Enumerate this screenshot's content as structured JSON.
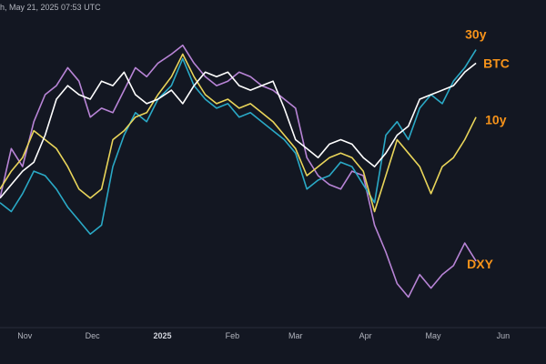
{
  "header": {
    "timestamp": "h, May 21, 2025 07:53 UTC"
  },
  "chart_data": {
    "type": "line",
    "colors": {
      "background": "#131722",
      "label": "#f7931a",
      "axis_text": "#b2b5be"
    },
    "x_ticks": [
      "Nov",
      "Dec",
      "2025",
      "Feb",
      "Mar",
      "Apr",
      "May",
      "Jun"
    ],
    "x_range": [
      "2024-10-21",
      "2025-06-20"
    ],
    "y_axis": "none",
    "grid": false,
    "series": [
      {
        "name": "DXY",
        "color": "#b884d6",
        "points": [
          [
            "2024-10-21",
            30
          ],
          [
            "2024-10-26",
            52
          ],
          [
            "2024-10-31",
            44
          ],
          [
            "2024-11-05",
            64
          ],
          [
            "2024-11-10",
            76
          ],
          [
            "2024-11-15",
            80
          ],
          [
            "2024-11-20",
            88
          ],
          [
            "2024-11-25",
            82
          ],
          [
            "2024-11-30",
            66
          ],
          [
            "2024-12-05",
            70
          ],
          [
            "2024-12-10",
            68
          ],
          [
            "2024-12-15",
            78
          ],
          [
            "2024-12-20",
            88
          ],
          [
            "2024-12-25",
            84
          ],
          [
            "2024-12-30",
            90
          ],
          [
            "2025-01-05",
            94
          ],
          [
            "2025-01-10",
            98
          ],
          [
            "2025-01-15",
            90
          ],
          [
            "2025-01-20",
            84
          ],
          [
            "2025-01-25",
            80
          ],
          [
            "2025-01-30",
            82
          ],
          [
            "2025-02-04",
            86
          ],
          [
            "2025-02-09",
            84
          ],
          [
            "2025-02-14",
            80
          ],
          [
            "2025-02-19",
            78
          ],
          [
            "2025-02-24",
            74
          ],
          [
            "2025-03-01",
            70
          ],
          [
            "2025-03-06",
            48
          ],
          [
            "2025-03-11",
            40
          ],
          [
            "2025-03-16",
            36
          ],
          [
            "2025-03-21",
            34
          ],
          [
            "2025-03-26",
            42
          ],
          [
            "2025-03-31",
            40
          ],
          [
            "2025-04-05",
            18
          ],
          [
            "2025-04-10",
            6
          ],
          [
            "2025-04-15",
            -8
          ],
          [
            "2025-04-20",
            -14
          ],
          [
            "2025-04-25",
            -4
          ],
          [
            "2025-04-30",
            -10
          ],
          [
            "2025-05-05",
            -4
          ],
          [
            "2025-05-10",
            0
          ],
          [
            "2025-05-15",
            10
          ],
          [
            "2025-05-20",
            2
          ]
        ]
      },
      {
        "name": "30y",
        "color": "#2aa9c6",
        "points": [
          [
            "2024-10-21",
            28
          ],
          [
            "2024-10-26",
            24
          ],
          [
            "2024-10-31",
            32
          ],
          [
            "2024-11-05",
            42
          ],
          [
            "2024-11-10",
            40
          ],
          [
            "2024-11-15",
            34
          ],
          [
            "2024-11-20",
            26
          ],
          [
            "2024-11-25",
            20
          ],
          [
            "2024-11-30",
            14
          ],
          [
            "2024-12-05",
            18
          ],
          [
            "2024-12-10",
            44
          ],
          [
            "2024-12-15",
            58
          ],
          [
            "2024-12-20",
            68
          ],
          [
            "2024-12-25",
            64
          ],
          [
            "2024-12-30",
            74
          ],
          [
            "2025-01-05",
            80
          ],
          [
            "2025-01-10",
            92
          ],
          [
            "2025-01-15",
            80
          ],
          [
            "2025-01-20",
            74
          ],
          [
            "2025-01-25",
            70
          ],
          [
            "2025-01-30",
            72
          ],
          [
            "2025-02-04",
            66
          ],
          [
            "2025-02-09",
            68
          ],
          [
            "2025-02-14",
            64
          ],
          [
            "2025-02-19",
            60
          ],
          [
            "2025-02-24",
            56
          ],
          [
            "2025-03-01",
            50
          ],
          [
            "2025-03-06",
            34
          ],
          [
            "2025-03-11",
            38
          ],
          [
            "2025-03-16",
            40
          ],
          [
            "2025-03-21",
            46
          ],
          [
            "2025-03-26",
            44
          ],
          [
            "2025-03-31",
            36
          ],
          [
            "2025-04-05",
            28
          ],
          [
            "2025-04-10",
            58
          ],
          [
            "2025-04-15",
            64
          ],
          [
            "2025-04-20",
            56
          ],
          [
            "2025-04-25",
            70
          ],
          [
            "2025-04-30",
            76
          ],
          [
            "2025-05-05",
            72
          ],
          [
            "2025-05-10",
            82
          ],
          [
            "2025-05-15",
            88
          ],
          [
            "2025-05-20",
            96
          ]
        ]
      },
      {
        "name": "10y",
        "color": "#e9d55a",
        "points": [
          [
            "2024-10-21",
            34
          ],
          [
            "2024-10-26",
            42
          ],
          [
            "2024-10-31",
            48
          ],
          [
            "2024-11-05",
            60
          ],
          [
            "2024-11-10",
            56
          ],
          [
            "2024-11-15",
            52
          ],
          [
            "2024-11-20",
            44
          ],
          [
            "2024-11-25",
            34
          ],
          [
            "2024-11-30",
            30
          ],
          [
            "2024-12-05",
            34
          ],
          [
            "2024-12-10",
            56
          ],
          [
            "2024-12-15",
            60
          ],
          [
            "2024-12-20",
            66
          ],
          [
            "2024-12-25",
            68
          ],
          [
            "2024-12-30",
            76
          ],
          [
            "2025-01-05",
            84
          ],
          [
            "2025-01-10",
            94
          ],
          [
            "2025-01-15",
            84
          ],
          [
            "2025-01-20",
            76
          ],
          [
            "2025-01-25",
            72
          ],
          [
            "2025-01-30",
            74
          ],
          [
            "2025-02-04",
            70
          ],
          [
            "2025-02-09",
            72
          ],
          [
            "2025-02-14",
            68
          ],
          [
            "2025-02-19",
            64
          ],
          [
            "2025-02-24",
            58
          ],
          [
            "2025-03-01",
            52
          ],
          [
            "2025-03-06",
            40
          ],
          [
            "2025-03-11",
            44
          ],
          [
            "2025-03-16",
            48
          ],
          [
            "2025-03-21",
            50
          ],
          [
            "2025-03-26",
            48
          ],
          [
            "2025-03-31",
            42
          ],
          [
            "2025-04-05",
            24
          ],
          [
            "2025-04-10",
            40
          ],
          [
            "2025-04-15",
            56
          ],
          [
            "2025-04-20",
            50
          ],
          [
            "2025-04-25",
            44
          ],
          [
            "2025-04-30",
            32
          ],
          [
            "2025-05-05",
            44
          ],
          [
            "2025-05-10",
            48
          ],
          [
            "2025-05-15",
            56
          ],
          [
            "2025-05-20",
            66
          ]
        ]
      },
      {
        "name": "BTC",
        "color": "#ffffff",
        "points": [
          [
            "2024-10-21",
            30
          ],
          [
            "2024-10-26",
            36
          ],
          [
            "2024-10-31",
            42
          ],
          [
            "2024-11-05",
            46
          ],
          [
            "2024-11-10",
            58
          ],
          [
            "2024-11-15",
            74
          ],
          [
            "2024-11-20",
            80
          ],
          [
            "2024-11-25",
            76
          ],
          [
            "2024-11-30",
            74
          ],
          [
            "2024-12-05",
            82
          ],
          [
            "2024-12-10",
            80
          ],
          [
            "2024-12-15",
            86
          ],
          [
            "2024-12-20",
            76
          ],
          [
            "2024-12-25",
            72
          ],
          [
            "2024-12-30",
            74
          ],
          [
            "2025-01-05",
            78
          ],
          [
            "2025-01-10",
            72
          ],
          [
            "2025-01-15",
            80
          ],
          [
            "2025-01-20",
            86
          ],
          [
            "2025-01-25",
            84
          ],
          [
            "2025-01-30",
            86
          ],
          [
            "2025-02-04",
            80
          ],
          [
            "2025-02-09",
            78
          ],
          [
            "2025-02-14",
            80
          ],
          [
            "2025-02-19",
            82
          ],
          [
            "2025-02-24",
            70
          ],
          [
            "2025-03-01",
            56
          ],
          [
            "2025-03-06",
            52
          ],
          [
            "2025-03-11",
            48
          ],
          [
            "2025-03-16",
            54
          ],
          [
            "2025-03-21",
            56
          ],
          [
            "2025-03-26",
            54
          ],
          [
            "2025-03-31",
            48
          ],
          [
            "2025-04-05",
            44
          ],
          [
            "2025-04-10",
            50
          ],
          [
            "2025-04-15",
            58
          ],
          [
            "2025-04-20",
            62
          ],
          [
            "2025-04-25",
            74
          ],
          [
            "2025-04-30",
            76
          ],
          [
            "2025-05-05",
            78
          ],
          [
            "2025-05-10",
            80
          ],
          [
            "2025-05-15",
            86
          ],
          [
            "2025-05-20",
            90
          ]
        ]
      }
    ]
  }
}
